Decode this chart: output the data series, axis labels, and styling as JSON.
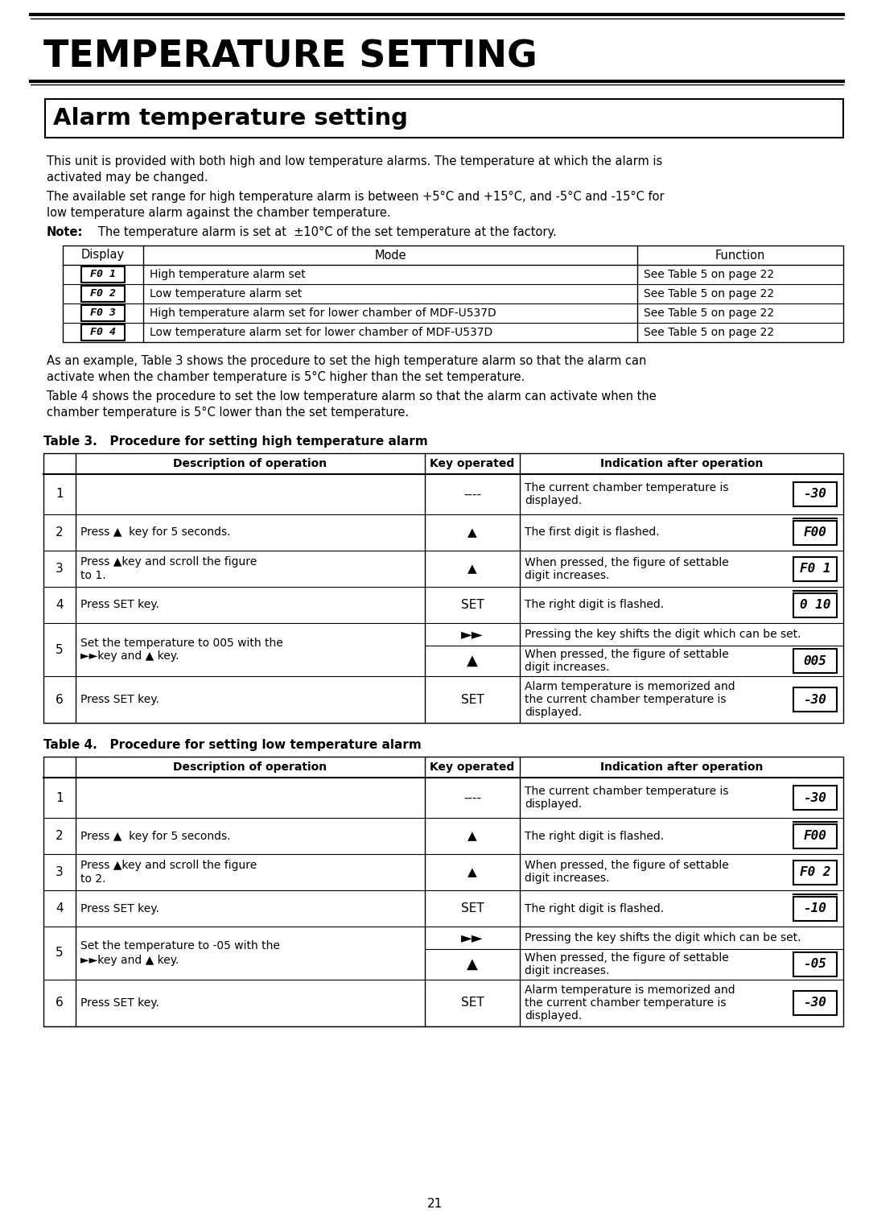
{
  "title": "TEMPERATURE SETTING",
  "subtitle": "Alarm temperature setting",
  "page_number": "21",
  "bg_color": "#ffffff",
  "text_color": "#000000",
  "para1": "This unit is provided with both high and low temperature alarms. The temperature at which the alarm is\nactivated may be changed.",
  "para2": "The available set range for high temperature alarm is between +5°C and +15°C, and -5°C and -15°C for\nlow temperature alarm against the chamber temperature.",
  "note_bold": "Note:",
  "note_rest": "   The temperature alarm is set at  ±10°C of the set temperature at the factory.",
  "display_table_headers": [
    "Display",
    "Mode",
    "Function"
  ],
  "display_table_codes": [
    "F0 1",
    "F0 2",
    "F0 3",
    "F0 4"
  ],
  "display_table_rows": [
    [
      "F0 1",
      "High temperature alarm set",
      "See Table 5 on page 22"
    ],
    [
      "F0 2",
      "Low temperature alarm set",
      "See Table 5 on page 22"
    ],
    [
      "F0 3",
      "High temperature alarm set for lower chamber of MDF-U537D",
      "See Table 5 on page 22"
    ],
    [
      "F0 4",
      "Low temperature alarm set for lower chamber of MDF-U537D",
      "See Table 5 on page 22"
    ]
  ],
  "para3": "As an example, Table 3 shows the procedure to set the high temperature alarm so that the alarm can\nactivate when the chamber temperature is 5°C higher than the set temperature.",
  "para4": "Table 4 shows the procedure to set the low temperature alarm so that the alarm can activate when the\nchamber temperature is 5°C lower than the set temperature.",
  "table3_title": "Table 3.   Procedure for setting high temperature alarm",
  "table4_title": "Table 4.   Procedure for setting low temperature alarm",
  "table3_rows": [
    {
      "row": "1",
      "desc": "",
      "key": "----",
      "ind": "The current chamber temperature is\ndisplayed.",
      "lcd": "-30",
      "lcd_style": "border",
      "overline": false
    },
    {
      "row": "2",
      "desc": "Press ▲  key for 5 seconds.",
      "key": "▲",
      "ind": "The first digit is flashed.",
      "lcd": "F00",
      "lcd_style": "border",
      "overline": true
    },
    {
      "row": "3",
      "desc": "Press ▲key and scroll the figure\nto 1.",
      "key": "▲",
      "ind": "When pressed, the figure of settable\ndigit increases.",
      "lcd": "F0 1",
      "lcd_style": "border",
      "overline": false
    },
    {
      "row": "4",
      "desc": "Press SET key.",
      "key": "SET",
      "ind": "The right digit is flashed.",
      "lcd": "0 10",
      "lcd_style": "border",
      "overline": true
    },
    {
      "row": "5",
      "desc": "Set the temperature to 005 with the\n►►key and ▲ key.",
      "key_a": "►►",
      "key_b": "▲",
      "ind_a": "Pressing the key shifts the digit which can be set.",
      "ind_b": "When pressed, the figure of settable\ndigit increases.",
      "lcd_b": "005",
      "lcd_style": "border",
      "overline": false,
      "merged": true
    },
    {
      "row": "6",
      "desc": "Press SET key.",
      "key": "SET",
      "ind": "Alarm temperature is memorized and\nthe current chamber temperature is\ndisplayed.",
      "lcd": "-30",
      "lcd_style": "border",
      "overline": false
    }
  ],
  "table4_rows": [
    {
      "row": "1",
      "desc": "",
      "key": "----",
      "ind": "The current chamber temperature is\ndisplayed.",
      "lcd": "-30",
      "lcd_style": "border",
      "overline": false
    },
    {
      "row": "2",
      "desc": "Press ▲  key for 5 seconds.",
      "key": "▲",
      "ind": "The right digit is flashed.",
      "lcd": "F00",
      "lcd_style": "border",
      "overline": true
    },
    {
      "row": "3",
      "desc": "Press ▲key and scroll the figure\nto 2.",
      "key": "▲",
      "ind": "When pressed, the figure of settable\ndigit increases.",
      "lcd": "F0 2",
      "lcd_style": "border",
      "overline": false
    },
    {
      "row": "4",
      "desc": "Press SET key.",
      "key": "SET",
      "ind": "The right digit is flashed.",
      "lcd": "-10",
      "lcd_style": "border",
      "overline": true
    },
    {
      "row": "5",
      "desc": "Set the temperature to -05 with the\n►►key and ▲ key.",
      "key_a": "►►",
      "key_b": "▲",
      "ind_a": "Pressing the key shifts the digit which can be set.",
      "ind_b": "When pressed, the figure of settable\ndigit increases.",
      "lcd_b": "-05",
      "lcd_style": "border",
      "overline": false,
      "merged": true
    },
    {
      "row": "6",
      "desc": "Press SET key.",
      "key": "SET",
      "ind": "Alarm temperature is memorized and\nthe current chamber temperature is\ndisplayed.",
      "lcd": "-30",
      "lcd_style": "border",
      "overline": false
    }
  ]
}
